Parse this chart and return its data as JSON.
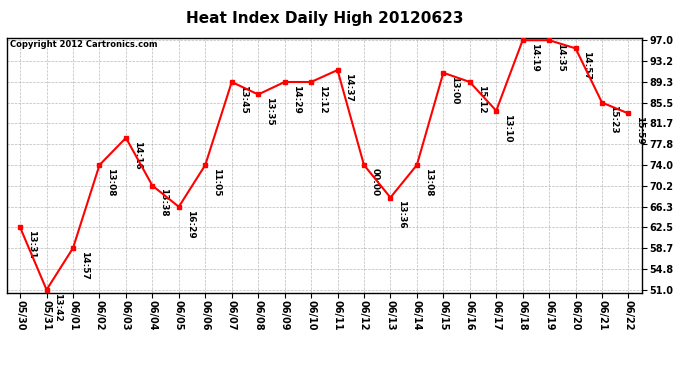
{
  "title": "Heat Index Daily High 20120623",
  "copyright": "Copyright 2012 Cartronics.com",
  "x_labels": [
    "05/30",
    "05/31",
    "06/01",
    "06/02",
    "06/03",
    "06/04",
    "06/05",
    "06/06",
    "06/07",
    "06/08",
    "06/09",
    "06/10",
    "06/11",
    "06/12",
    "06/13",
    "06/14",
    "06/15",
    "06/16",
    "06/17",
    "06/18",
    "06/19",
    "06/20",
    "06/21",
    "06/22"
  ],
  "y_values": [
    62.5,
    51.0,
    58.7,
    74.0,
    79.0,
    70.2,
    66.3,
    74.0,
    89.3,
    87.0,
    89.3,
    89.3,
    91.5,
    74.0,
    68.0,
    74.0,
    91.0,
    89.3,
    84.0,
    97.0,
    97.0,
    95.5,
    85.5,
    83.5
  ],
  "point_labels": [
    "13:31",
    "13:42",
    "14:57",
    "13:08",
    "14:16",
    "13:38",
    "16:29",
    "11:05",
    "13:45",
    "13:35",
    "14:29",
    "12:12",
    "14:37",
    "00:00",
    "13:36",
    "13:08",
    "13:00",
    "15:12",
    "13:10",
    "14:19",
    "14:35",
    "14:57",
    "15:23",
    "15:59"
  ],
  "ylim": [
    51.0,
    97.0
  ],
  "yticks": [
    51.0,
    54.8,
    58.7,
    62.5,
    66.3,
    70.2,
    74.0,
    77.8,
    81.7,
    85.5,
    89.3,
    93.2,
    97.0
  ],
  "line_color": "red",
  "marker_color": "red",
  "bg_color": "white",
  "grid_color": "#aaaaaa",
  "title_fontsize": 11,
  "tick_fontsize": 7,
  "point_label_fontsize": 6.5
}
